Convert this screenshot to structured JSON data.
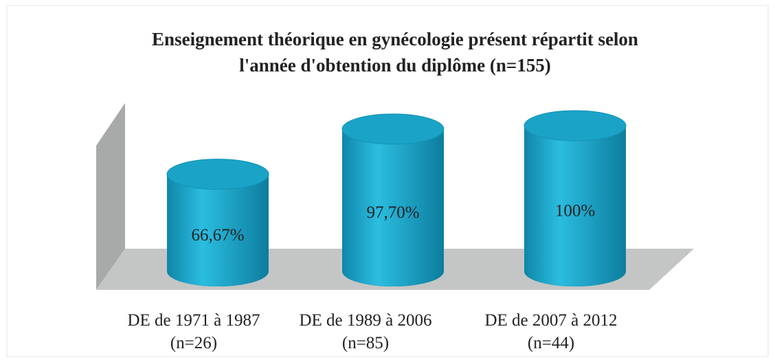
{
  "chart_data": {
    "type": "bar3d",
    "title": "Enseignement théorique en gynécologie présent répartit selon\nl'année d'obtention du diplôme (n=155)",
    "categories": [
      "DE de 1971 à 1987\n(n=26)",
      "DE de 1989 à 2006\n(n=85)",
      "DE de 2007 à 2012\n(n=44)"
    ],
    "values": [
      66.67,
      97.7,
      100
    ],
    "value_labels": [
      "66,67%",
      "97,70%",
      "100%"
    ],
    "color": "#1aa3c6",
    "ylim": [
      0,
      100
    ]
  }
}
